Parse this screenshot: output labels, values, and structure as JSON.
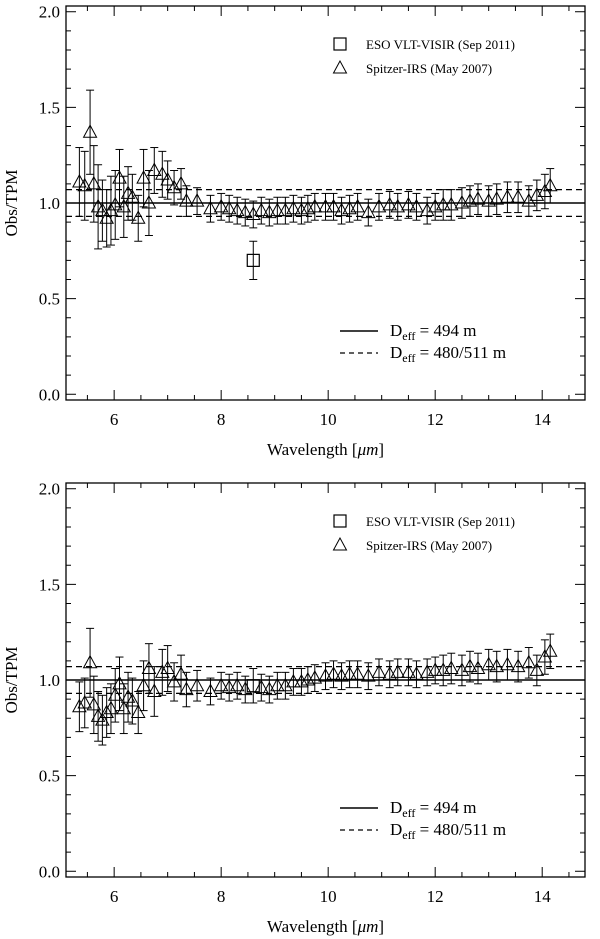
{
  "chart_data": [
    {
      "type": "scatter",
      "panel": "top",
      "xlabel": "Wavelength [",
      "xlabel_unit": "μm",
      "xlabel_close": "]",
      "ylabel": "Obs/TPM",
      "xlim": [
        5.1,
        14.8
      ],
      "ylim": [
        -0.03,
        2.03
      ],
      "x_ticks": [
        "6",
        "8",
        "10",
        "12",
        "14"
      ],
      "y_ticks": [
        "0.0",
        "0.5",
        "1.0",
        "1.5",
        "2.0"
      ],
      "reference_lines": [
        {
          "y": 1.0,
          "style": "solid",
          "label_main": "D",
          "label_sub": "eff",
          "label_rest": " = 494 m"
        },
        {
          "y": 1.07,
          "style": "dashed",
          "label_main": "D",
          "label_sub": "eff",
          "label_rest": " = 480/511 m"
        },
        {
          "y": 0.93,
          "style": "dashed"
        }
      ],
      "legend_position": "top-right",
      "series": [
        {
          "name": "ESO VLT-VISIR (Sep 2011)",
          "marker": "square",
          "points": [
            [
              8.6,
              0.7,
              0.1
            ]
          ]
        },
        {
          "name": "Spitzer-IRS (May 2007)",
          "marker": "triangle",
          "points": [
            [
              5.35,
              1.11,
              0.18
            ],
            [
              5.45,
              1.09,
              0.18
            ],
            [
              5.55,
              1.37,
              0.22
            ],
            [
              5.62,
              1.1,
              0.2
            ],
            [
              5.7,
              0.98,
              0.22
            ],
            [
              5.78,
              0.96,
              0.16
            ],
            [
              5.86,
              0.92,
              0.15
            ],
            [
              5.94,
              0.96,
              0.18
            ],
            [
              6.02,
              0.99,
              0.18
            ],
            [
              6.1,
              1.13,
              0.15
            ],
            [
              6.18,
              0.98,
              0.16
            ],
            [
              6.26,
              1.05,
              0.14
            ],
            [
              6.34,
              1.03,
              0.12
            ],
            [
              6.45,
              0.92,
              0.12
            ],
            [
              6.55,
              1.13,
              0.15
            ],
            [
              6.65,
              1.0,
              0.17
            ],
            [
              6.75,
              1.17,
              0.12
            ],
            [
              6.9,
              1.15,
              0.12
            ],
            [
              7.0,
              1.12,
              0.1
            ],
            [
              7.12,
              1.08,
              0.09
            ],
            [
              7.25,
              1.1,
              0.08
            ],
            [
              7.35,
              1.01,
              0.08
            ],
            [
              7.55,
              1.01,
              0.07
            ],
            [
              7.8,
              0.97,
              0.07
            ],
            [
              8.0,
              0.98,
              0.07
            ],
            [
              8.15,
              0.97,
              0.07
            ],
            [
              8.3,
              0.96,
              0.07
            ],
            [
              8.45,
              0.95,
              0.07
            ],
            [
              8.6,
              0.94,
              0.07
            ],
            [
              8.75,
              0.96,
              0.07
            ],
            [
              8.9,
              0.95,
              0.07
            ],
            [
              9.05,
              0.96,
              0.07
            ],
            [
              9.2,
              0.96,
              0.07
            ],
            [
              9.35,
              0.97,
              0.07
            ],
            [
              9.5,
              0.96,
              0.07
            ],
            [
              9.62,
              0.97,
              0.07
            ],
            [
              9.75,
              0.98,
              0.07
            ],
            [
              9.95,
              0.98,
              0.07
            ],
            [
              10.1,
              0.98,
              0.07
            ],
            [
              10.25,
              0.96,
              0.07
            ],
            [
              10.4,
              0.97,
              0.07
            ],
            [
              10.55,
              0.98,
              0.07
            ],
            [
              10.75,
              0.95,
              0.07
            ],
            [
              10.95,
              0.98,
              0.07
            ],
            [
              11.15,
              0.99,
              0.07
            ],
            [
              11.3,
              0.98,
              0.07
            ],
            [
              11.5,
              0.99,
              0.07
            ],
            [
              11.65,
              0.98,
              0.07
            ],
            [
              11.85,
              0.96,
              0.07
            ],
            [
              12.0,
              0.98,
              0.07
            ],
            [
              12.15,
              0.99,
              0.08
            ],
            [
              12.3,
              0.99,
              0.08
            ],
            [
              12.5,
              1.0,
              0.08
            ],
            [
              12.65,
              1.01,
              0.08
            ],
            [
              12.8,
              1.02,
              0.08
            ],
            [
              13.0,
              1.01,
              0.08
            ],
            [
              13.15,
              1.02,
              0.08
            ],
            [
              13.35,
              1.03,
              0.08
            ],
            [
              13.55,
              1.03,
              0.08
            ],
            [
              13.75,
              1.01,
              0.08
            ],
            [
              13.9,
              1.04,
              0.08
            ],
            [
              14.05,
              1.06,
              0.09
            ],
            [
              14.15,
              1.09,
              0.09
            ]
          ]
        }
      ]
    },
    {
      "type": "scatter",
      "panel": "bottom",
      "xlabel": "Wavelength [",
      "xlabel_unit": "μm",
      "xlabel_close": "]",
      "ylabel": "Obs/TPM",
      "xlim": [
        5.1,
        14.8
      ],
      "ylim": [
        -0.03,
        2.03
      ],
      "x_ticks": [
        "6",
        "8",
        "10",
        "12",
        "14"
      ],
      "y_ticks": [
        "0.0",
        "0.5",
        "1.0",
        "1.5",
        "2.0"
      ],
      "reference_lines": [
        {
          "y": 1.0,
          "style": "solid",
          "label_main": "D",
          "label_sub": "eff",
          "label_rest": " = 494 m"
        },
        {
          "y": 1.07,
          "style": "dashed",
          "label_main": "D",
          "label_sub": "eff",
          "label_rest": " = 480/511 m"
        },
        {
          "y": 0.93,
          "style": "dashed"
        }
      ],
      "legend_position": "top-right",
      "series": [
        {
          "name": "ESO VLT-VISIR (Sep 2011)",
          "marker": "square",
          "points": [
            [
              8.6,
              0.97,
              0.09
            ]
          ]
        },
        {
          "name": "Spitzer-IRS (May 2007)",
          "marker": "triangle",
          "points": [
            [
              5.35,
              0.86,
              0.13
            ],
            [
              5.45,
              0.88,
              0.13
            ],
            [
              5.55,
              1.09,
              0.18
            ],
            [
              5.62,
              0.87,
              0.15
            ],
            [
              5.7,
              0.81,
              0.13
            ],
            [
              5.78,
              0.79,
              0.13
            ],
            [
              5.86,
              0.83,
              0.13
            ],
            [
              5.94,
              0.85,
              0.13
            ],
            [
              6.02,
              0.92,
              0.14
            ],
            [
              6.1,
              0.98,
              0.14
            ],
            [
              6.18,
              0.85,
              0.13
            ],
            [
              6.26,
              0.91,
              0.13
            ],
            [
              6.34,
              0.89,
              0.12
            ],
            [
              6.45,
              0.83,
              0.11
            ],
            [
              6.55,
              0.97,
              0.13
            ],
            [
              6.65,
              1.06,
              0.13
            ],
            [
              6.75,
              0.94,
              0.13
            ],
            [
              6.9,
              1.04,
              0.12
            ],
            [
              7.0,
              1.06,
              0.12
            ],
            [
              7.12,
              0.99,
              0.1
            ],
            [
              7.25,
              1.03,
              0.1
            ],
            [
              7.35,
              0.95,
              0.09
            ],
            [
              7.55,
              0.97,
              0.08
            ],
            [
              7.8,
              0.94,
              0.07
            ],
            [
              8.0,
              0.97,
              0.07
            ],
            [
              8.15,
              0.96,
              0.07
            ],
            [
              8.3,
              0.97,
              0.07
            ],
            [
              8.45,
              0.95,
              0.07
            ],
            [
              8.75,
              0.96,
              0.07
            ],
            [
              8.9,
              0.95,
              0.07
            ],
            [
              9.05,
              0.97,
              0.07
            ],
            [
              9.2,
              0.97,
              0.07
            ],
            [
              9.35,
              0.99,
              0.07
            ],
            [
              9.5,
              0.99,
              0.07
            ],
            [
              9.62,
              1.0,
              0.07
            ],
            [
              9.75,
              1.01,
              0.07
            ],
            [
              9.95,
              1.02,
              0.07
            ],
            [
              10.1,
              1.03,
              0.07
            ],
            [
              10.25,
              1.02,
              0.07
            ],
            [
              10.4,
              1.03,
              0.07
            ],
            [
              10.55,
              1.03,
              0.07
            ],
            [
              10.75,
              1.02,
              0.07
            ],
            [
              10.95,
              1.04,
              0.07
            ],
            [
              11.15,
              1.03,
              0.07
            ],
            [
              11.3,
              1.04,
              0.07
            ],
            [
              11.5,
              1.04,
              0.07
            ],
            [
              11.65,
              1.03,
              0.07
            ],
            [
              11.85,
              1.04,
              0.07
            ],
            [
              12.0,
              1.05,
              0.07
            ],
            [
              12.15,
              1.05,
              0.08
            ],
            [
              12.3,
              1.06,
              0.08
            ],
            [
              12.5,
              1.05,
              0.08
            ],
            [
              12.65,
              1.07,
              0.08
            ],
            [
              12.8,
              1.06,
              0.08
            ],
            [
              13.0,
              1.08,
              0.08
            ],
            [
              13.15,
              1.07,
              0.08
            ],
            [
              13.35,
              1.08,
              0.08
            ],
            [
              13.55,
              1.07,
              0.08
            ],
            [
              13.75,
              1.09,
              0.08
            ],
            [
              13.9,
              1.05,
              0.08
            ],
            [
              14.05,
              1.12,
              0.09
            ],
            [
              14.15,
              1.15,
              0.09
            ]
          ]
        }
      ]
    }
  ]
}
